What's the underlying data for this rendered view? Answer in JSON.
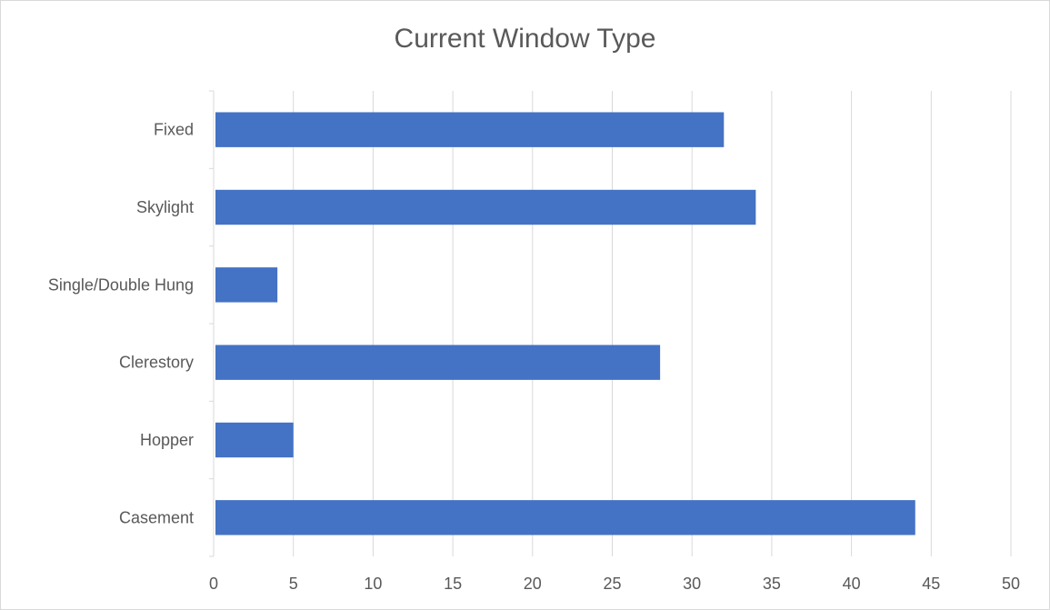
{
  "chart_data": {
    "type": "bar",
    "orientation": "horizontal",
    "title": "Current Window Type",
    "categories": [
      "Fixed",
      "Skylight",
      "Single/Double Hung",
      "Clerestory",
      "Hopper",
      "Casement"
    ],
    "values": [
      32,
      34,
      4,
      28,
      5,
      44
    ],
    "xlim": [
      0,
      50
    ],
    "xticks": [
      "0",
      "5",
      "10",
      "15",
      "20",
      "25",
      "30",
      "35",
      "40",
      "45",
      "50"
    ],
    "grid": true,
    "legend": "none",
    "bar_color": "#4472c4"
  }
}
